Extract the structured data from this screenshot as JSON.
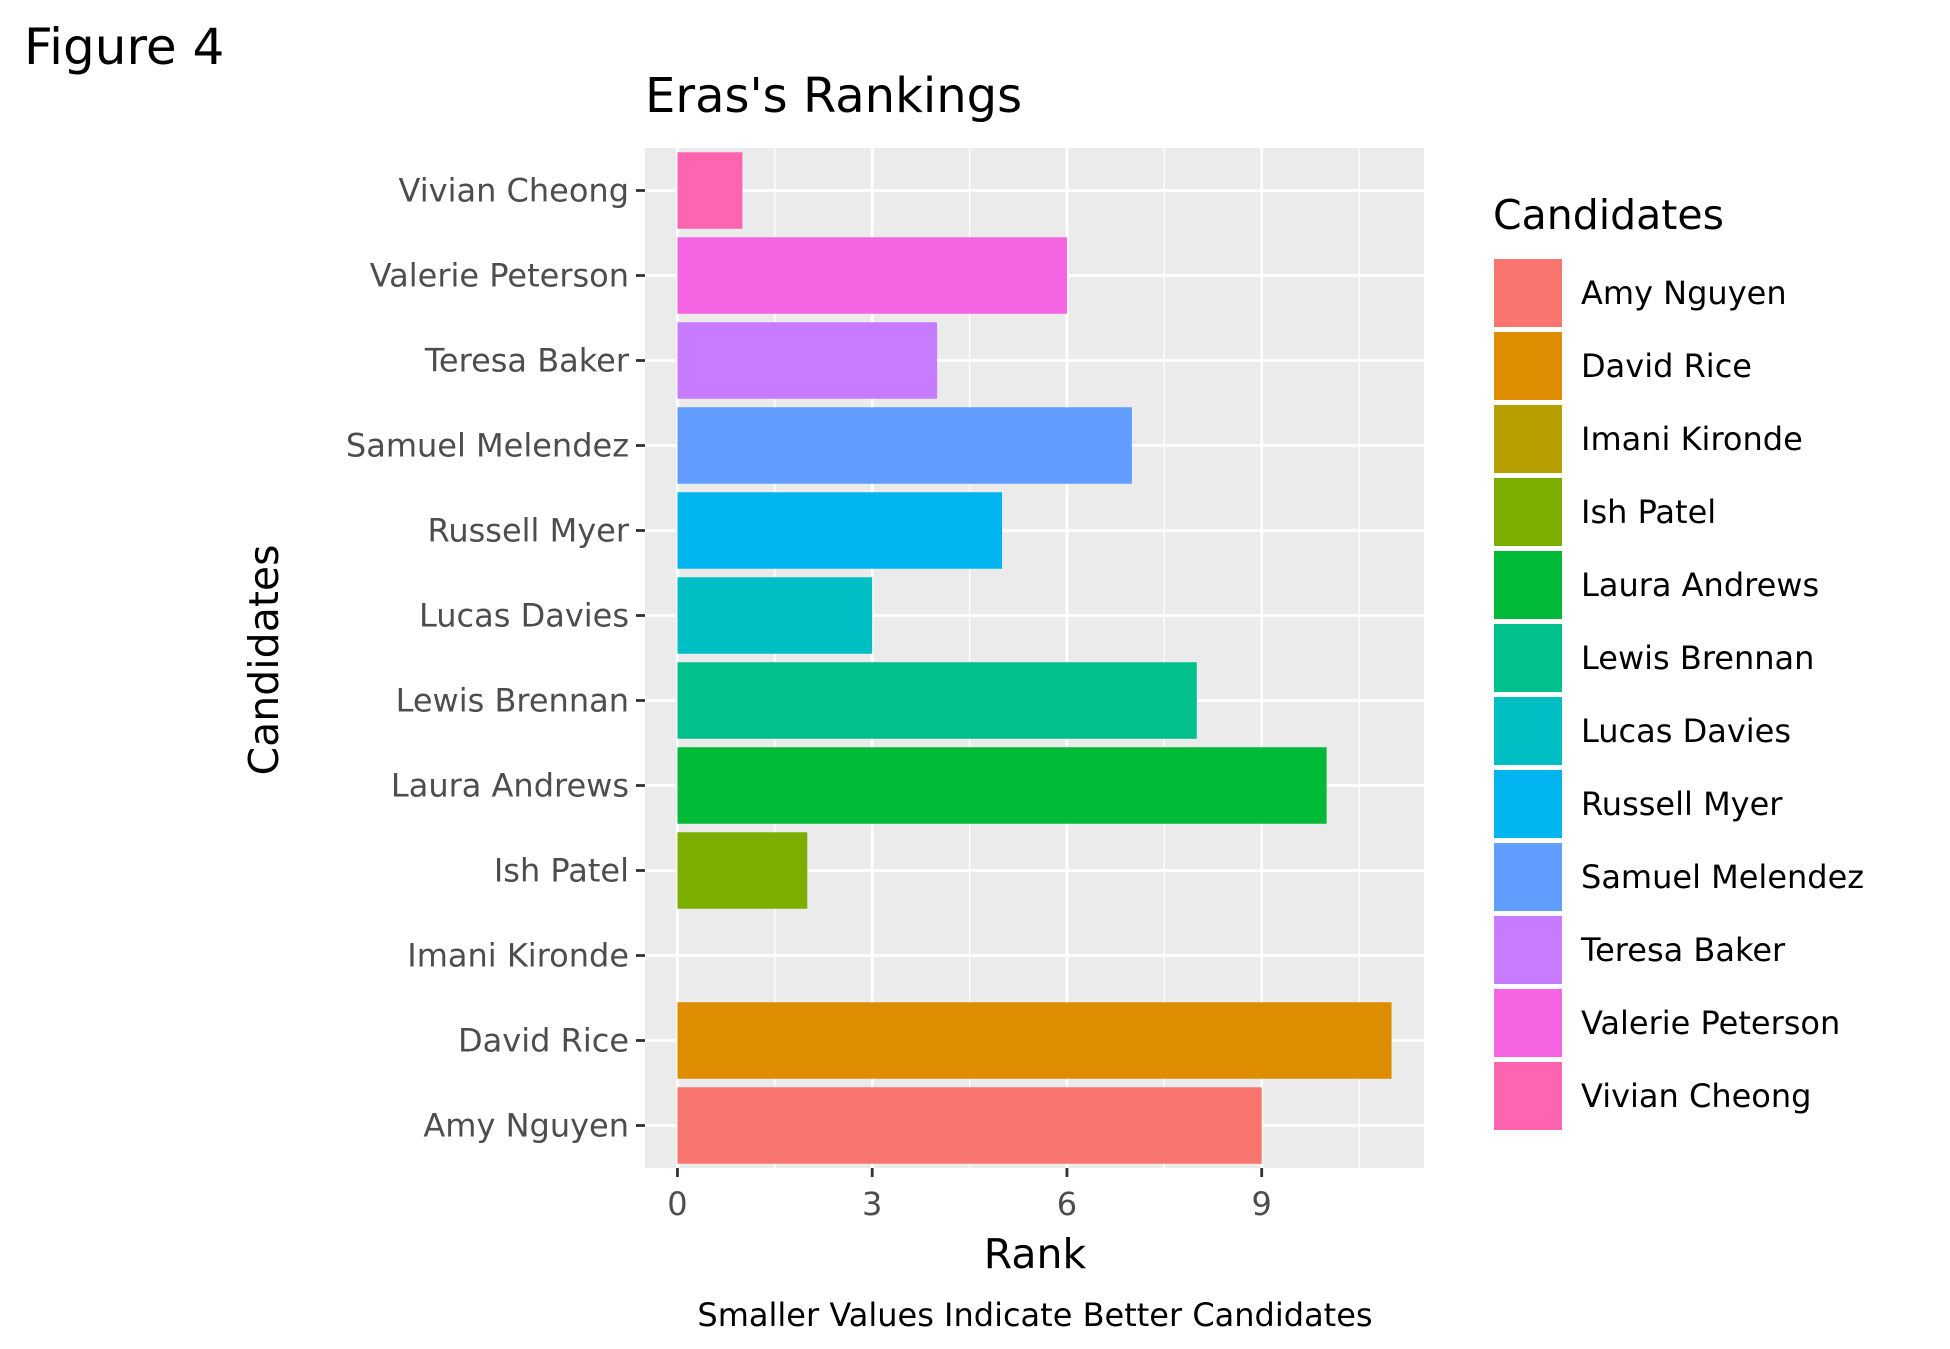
{
  "figure_label": "Figure 4",
  "chart_data": {
    "type": "bar",
    "orientation": "horizontal",
    "title": "Eras's Rankings",
    "xlabel": "Rank",
    "ylabel": "Candidates",
    "caption": "Smaller Values Indicate Better Candidates",
    "xlim": [
      -0.5,
      11.5
    ],
    "x_ticks": [
      0,
      3,
      6,
      9
    ],
    "grid": true,
    "legend_position": "right",
    "legend_title": "Candidates",
    "categories": [
      "Amy Nguyen",
      "David Rice",
      "Imani Kironde",
      "Ish Patel",
      "Laura Andrews",
      "Lewis Brennan",
      "Lucas Davies",
      "Russell Myer",
      "Samuel Melendez",
      "Teresa Baker",
      "Valerie Peterson",
      "Vivian Cheong"
    ],
    "values": [
      9,
      11,
      0,
      2,
      10,
      8,
      3,
      5,
      7,
      4,
      6,
      1
    ],
    "colors": [
      "#F8766D",
      "#DE8C00",
      "#B79F00",
      "#7CAE00",
      "#00BA38",
      "#00C08B",
      "#00BFC4",
      "#00B4F0",
      "#619CFF",
      "#C77CFF",
      "#F564E3",
      "#FF64B0"
    ]
  }
}
